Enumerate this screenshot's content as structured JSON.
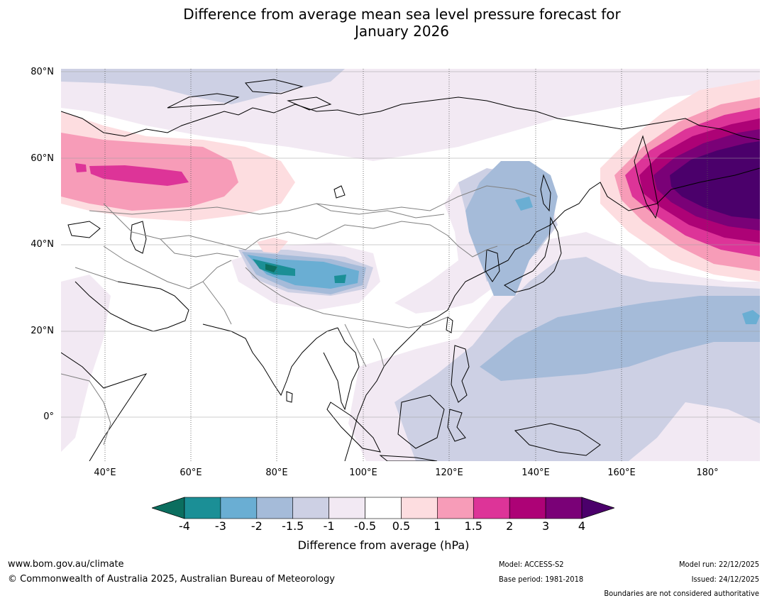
{
  "title": {
    "line1": "Difference from average mean sea level pressure forecast for",
    "line2": "January 2026"
  },
  "map": {
    "lat_labels": [
      "80°N",
      "60°N",
      "40°N",
      "20°N",
      "0°"
    ],
    "lon_labels": [
      "40°E",
      "60°E",
      "80°E",
      "100°E",
      "120°E",
      "140°E",
      "160°E",
      "180°"
    ],
    "colors": {
      "land_outline": "#000000",
      "border": "#808080",
      "grid": "#9e9e9e"
    }
  },
  "colorbar": {
    "ticks": [
      "-4",
      "-3",
      "-2",
      "-1.5",
      "-1",
      "-0.5",
      "0.5",
      "1",
      "1.5",
      "2",
      "3",
      "4"
    ],
    "colors": [
      "#0b6e5f",
      "#1b8f96",
      "#6aaed3",
      "#a5bbd9",
      "#cdd0e4",
      "#f2e9f3",
      "#ffffff",
      "#fddde0",
      "#f79cb8",
      "#dd3498",
      "#ad0276",
      "#7a0177",
      "#4b006b"
    ],
    "label": "Difference from average (hPa)"
  },
  "footer": {
    "url": "www.bom.gov.au/climate",
    "copyright": "© Commonwealth of Australia 2025, Australian Bureau of Meteorology",
    "model": "Model: ACCESS-S2",
    "base_period": "Base period: 1981-2018",
    "model_run": "Model run: 22/12/2025",
    "issued": "Issued: 24/12/2025",
    "disclaimer": "Boundaries are not considered authoritative"
  }
}
